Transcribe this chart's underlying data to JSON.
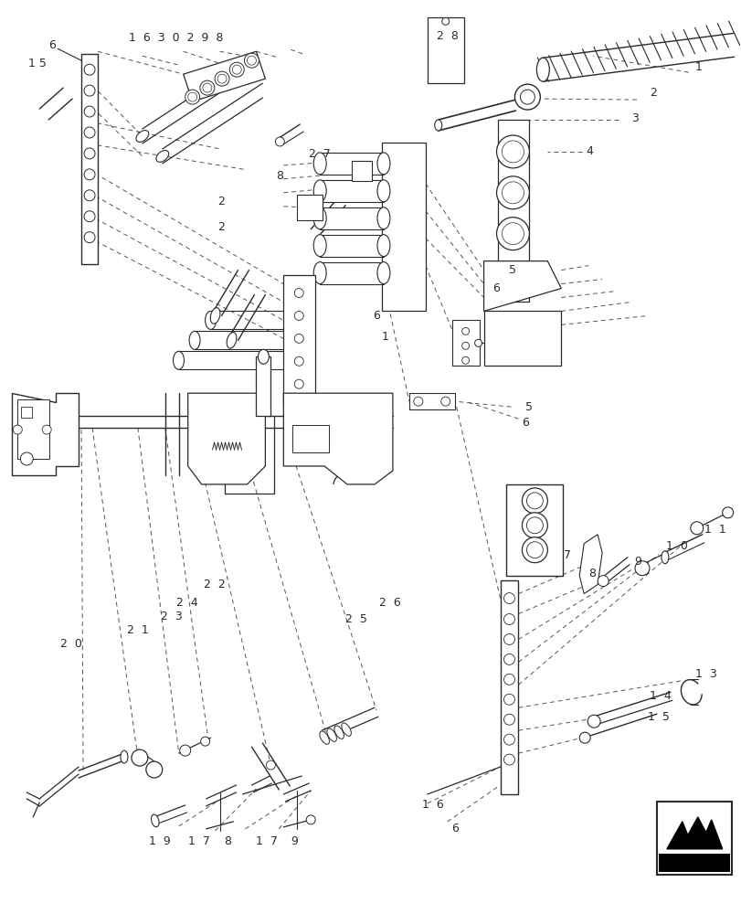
{
  "background_color": "#ffffff",
  "line_color": "#2a2a2a",
  "dashed_color": "#555555",
  "text_color": "#2a2a2a",
  "fig_width": 8.12,
  "fig_height": 10.0,
  "dpi": 100
}
